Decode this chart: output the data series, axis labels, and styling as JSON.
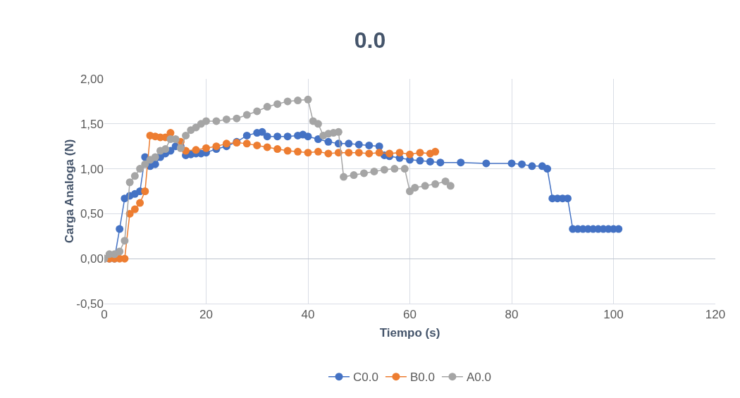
{
  "chart_data": {
    "type": "line",
    "title": "0.0",
    "xlabel": "Tiempo (s)",
    "ylabel": "Carga Analoga (N)",
    "xlim": [
      0,
      120
    ],
    "xticks": [
      0,
      20,
      40,
      60,
      80,
      100,
      120
    ],
    "ylim": [
      -0.5,
      2
    ],
    "yticks": [
      {
        "value": -0.5,
        "label": "-0,50"
      },
      {
        "value": 0,
        "label": "0,00"
      },
      {
        "value": 0.5,
        "label": "0,50"
      },
      {
        "value": 1,
        "label": "1,00"
      },
      {
        "value": 1.5,
        "label": "1,50"
      },
      {
        "value": 2,
        "label": "2,00"
      }
    ],
    "grid": true,
    "legend": "bottom",
    "marker": "circle",
    "line_style": "solid",
    "series": [
      {
        "name": "C0.0",
        "color": "#4472c4",
        "x": [
          0,
          1,
          2,
          3,
          4,
          5,
          6,
          7,
          8,
          9,
          10,
          11,
          12,
          13,
          14,
          15,
          16,
          17,
          18,
          19,
          20,
          22,
          24,
          26,
          28,
          30,
          31,
          32,
          34,
          36,
          38,
          39,
          40,
          42,
          44,
          46,
          48,
          50,
          52,
          54,
          55,
          56,
          58,
          60,
          62,
          64,
          66,
          70,
          75,
          80,
          82,
          84,
          86,
          87,
          88,
          89,
          90,
          91,
          92,
          93,
          94,
          95,
          96,
          97,
          98,
          99,
          100,
          101
        ],
        "values": [
          0,
          0,
          0,
          0.33,
          0.67,
          0.7,
          0.72,
          0.75,
          1.13,
          1.03,
          1.05,
          1.13,
          1.17,
          1.2,
          1.25,
          1.25,
          1.15,
          1.16,
          1.17,
          1.17,
          1.18,
          1.22,
          1.25,
          1.3,
          1.37,
          1.4,
          1.41,
          1.36,
          1.36,
          1.36,
          1.37,
          1.38,
          1.36,
          1.33,
          1.3,
          1.28,
          1.28,
          1.27,
          1.26,
          1.25,
          1.15,
          1.14,
          1.12,
          1.1,
          1.09,
          1.08,
          1.07,
          1.07,
          1.06,
          1.06,
          1.05,
          1.03,
          1.03,
          1.0,
          0.67,
          0.67,
          0.67,
          0.67,
          0.33,
          0.33,
          0.33,
          0.33,
          0.33,
          0.33,
          0.33,
          0.33,
          0.33,
          0.33
        ]
      },
      {
        "name": "B0.0",
        "color": "#ed7d31",
        "x": [
          0,
          1,
          2,
          3,
          4,
          5,
          6,
          7,
          8,
          9,
          10,
          11,
          12,
          13,
          14,
          15,
          16,
          18,
          20,
          22,
          24,
          26,
          28,
          30,
          32,
          34,
          36,
          38,
          40,
          42,
          44,
          46,
          48,
          50,
          52,
          54,
          56,
          58,
          60,
          62,
          64,
          65
        ],
        "values": [
          0,
          0,
          0,
          0,
          0,
          0.5,
          0.55,
          0.62,
          0.75,
          1.37,
          1.36,
          1.35,
          1.35,
          1.4,
          null,
          1.3,
          1.2,
          1.21,
          1.23,
          1.25,
          1.28,
          1.29,
          1.28,
          1.26,
          1.24,
          1.22,
          1.2,
          1.19,
          1.18,
          1.19,
          1.17,
          1.18,
          1.18,
          1.18,
          1.17,
          1.18,
          1.17,
          1.18,
          1.16,
          1.18,
          1.17,
          1.19
        ]
      },
      {
        "name": "A0.0",
        "color": "#a5a5a5",
        "x": [
          0,
          1,
          2,
          3,
          4,
          5,
          6,
          7,
          8,
          9,
          10,
          11,
          12,
          13,
          14,
          15,
          16,
          17,
          18,
          19,
          20,
          22,
          24,
          26,
          28,
          30,
          32,
          34,
          36,
          38,
          40,
          41,
          42,
          43,
          44,
          45,
          46,
          47,
          49,
          51,
          53,
          55,
          57,
          59,
          60,
          61,
          63,
          65,
          67,
          68
        ],
        "values": [
          0,
          0.05,
          0.05,
          0.08,
          0.2,
          0.85,
          0.92,
          1.0,
          1.05,
          1.1,
          1.13,
          1.2,
          1.22,
          1.33,
          1.33,
          1.23,
          1.37,
          1.43,
          1.46,
          1.5,
          1.53,
          1.53,
          1.55,
          1.56,
          1.6,
          1.64,
          1.69,
          1.72,
          1.75,
          1.76,
          1.77,
          1.53,
          1.5,
          1.37,
          1.39,
          1.4,
          1.41,
          0.91,
          0.93,
          0.95,
          0.97,
          0.99,
          1.0,
          1.0,
          0.75,
          0.79,
          0.81,
          0.83,
          0.86,
          0.81
        ]
      }
    ]
  }
}
